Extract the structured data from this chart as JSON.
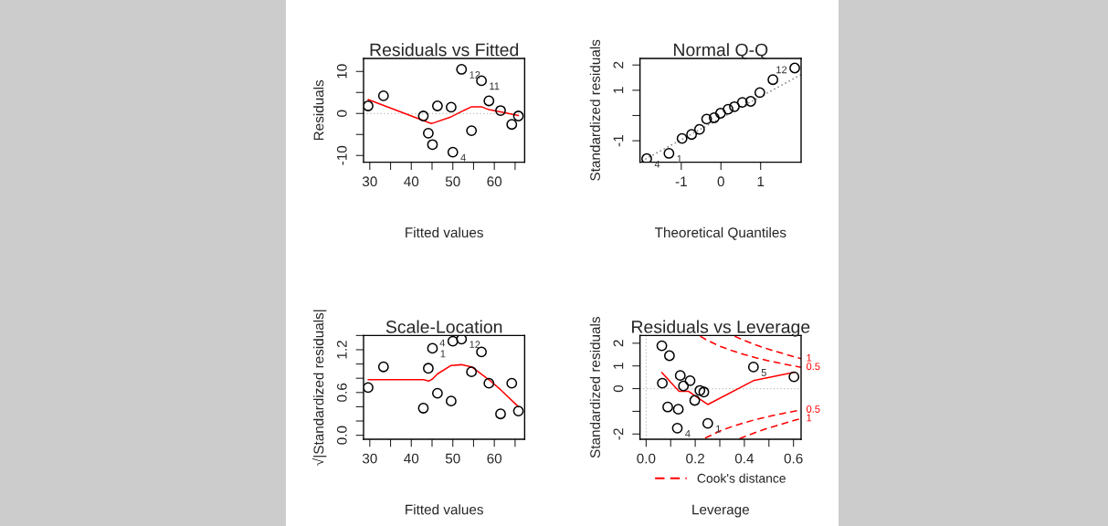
{
  "chart_data": [
    {
      "type": "scatter",
      "title": "Residuals vs Fitted",
      "xlabel": "Fitted values",
      "ylabel": "Residuals",
      "series": [
        {
          "type": "scatter",
          "color": "#000000",
          "marker": "circle",
          "x": [
            29.6,
            33.3,
            42.9,
            44.1,
            45.1,
            46.3,
            49.6,
            50.0,
            52.1,
            54.5,
            56.9,
            58.7,
            61.5,
            64.2,
            65.8
          ],
          "values": [
            1.8,
            4.2,
            -0.6,
            -4.7,
            -7.4,
            1.8,
            1.5,
            -9.2,
            10.5,
            -4.1,
            7.8,
            3.0,
            0.7,
            -2.6,
            -0.6
          ]
        },
        {
          "type": "line",
          "color": "#ff0000",
          "line_style": "solid",
          "x": [
            29.6,
            44.8,
            45.5,
            49.6,
            52.0,
            54.5,
            56.9,
            58.7,
            61.5,
            65.8
          ],
          "values": [
            3.3,
            -2.4,
            -2.2,
            -0.8,
            0.4,
            1.6,
            1.6,
            0.9,
            0.4,
            -0.5
          ]
        }
      ],
      "ref_lines": [
        {
          "axis": "y",
          "value": 0,
          "color": "#bebebe",
          "line_style": "dotted"
        }
      ],
      "annotations": [
        {
          "text": "4",
          "x": 50.0,
          "y": -9.2
        },
        {
          "text": "12",
          "x": 52.1,
          "y": 10.5
        },
        {
          "text": "11",
          "x": 56.9,
          "y": 7.8
        }
      ],
      "xlim": [
        28.5,
        67.3
      ],
      "xticks": [
        30,
        {
          "value": 35,
          "label": null
        },
        40,
        {
          "value": 45,
          "label": null
        },
        50,
        {
          "value": 55,
          "label": null
        },
        60,
        {
          "value": 65,
          "label": null
        }
      ],
      "ylim": [
        -11.6,
        13.1
      ],
      "yticks": [
        -10,
        {
          "value": -5,
          "label": null
        },
        0,
        {
          "value": 5,
          "label": null
        },
        10
      ],
      "grid": false,
      "legend": false
    },
    {
      "type": "scatter",
      "title": "Normal Q-Q",
      "xlabel": "Theoretical Quantiles",
      "ylabel": "Standardized residuals",
      "series": [
        {
          "type": "scatter",
          "color": "#000000",
          "marker": "circle",
          "x": [
            -1.87,
            -1.31,
            -0.98,
            -0.74,
            -0.54,
            -0.36,
            -0.17,
            -0.01,
            0.18,
            0.34,
            0.54,
            0.75,
            0.98,
            1.31,
            1.86
          ],
          "values": [
            -1.71,
            -1.5,
            -0.91,
            -0.75,
            -0.55,
            -0.14,
            -0.09,
            0.09,
            0.25,
            0.35,
            0.52,
            0.56,
            0.91,
            1.42,
            1.88
          ]
        },
        {
          "type": "line",
          "color": "#808080",
          "line_style": "dotted",
          "x": [
            -2.0,
            2.02
          ],
          "values": [
            -1.81,
            1.62
          ]
        }
      ],
      "annotations": [
        {
          "text": "4",
          "x": -1.87,
          "y": -1.71
        },
        {
          "text": "1",
          "x": -1.31,
          "y": -1.5
        },
        {
          "text": "12",
          "x": 1.86,
          "y": 1.88
        }
      ],
      "xlim": [
        -2.04,
        2.02
      ],
      "xticks": [
        -1,
        0,
        1
      ],
      "ylim": [
        -1.85,
        2.26
      ],
      "yticks": [
        -1,
        {
          "value": 0,
          "label": null
        },
        1,
        2
      ],
      "grid": false,
      "legend": false
    },
    {
      "type": "scatter",
      "title": "Scale-Location",
      "xlabel": "Fitted values",
      "ylabel": "√|Standardized residuals|",
      "series": [
        {
          "type": "scatter",
          "color": "#000000",
          "marker": "circle",
          "x": [
            29.6,
            33.3,
            42.9,
            44.1,
            45.1,
            46.3,
            49.6,
            50.0,
            52.1,
            54.5,
            56.9,
            58.7,
            61.5,
            64.2,
            65.8
          ],
          "values": [
            0.67,
            0.96,
            0.38,
            0.94,
            1.22,
            0.59,
            0.48,
            1.32,
            1.35,
            0.89,
            1.17,
            0.73,
            0.3,
            0.73,
            0.34
          ]
        },
        {
          "type": "line",
          "color": "#ff0000",
          "line_style": "solid",
          "x": [
            29.6,
            42.9,
            44.2,
            45.1,
            46.3,
            49.6,
            52.1,
            54.5,
            58.7,
            61.5,
            65.8
          ],
          "values": [
            0.78,
            0.78,
            0.76,
            0.79,
            0.86,
            0.98,
            0.99,
            0.96,
            0.78,
            0.64,
            0.4
          ]
        }
      ],
      "annotations": [
        {
          "text": "1",
          "x": 45.1,
          "y": 1.22
        },
        {
          "text": "4",
          "x": 50.0,
          "y": 1.32
        },
        {
          "text": "12",
          "x": 52.1,
          "y": 1.35
        }
      ],
      "xlim": [
        28.5,
        67.3
      ],
      "xticks": [
        30,
        {
          "value": 35,
          "label": null
        },
        40,
        {
          "value": 45,
          "label": null
        },
        50,
        {
          "value": 55,
          "label": null
        },
        60,
        {
          "value": 65,
          "label": null
        }
      ],
      "ylim": [
        -0.056,
        1.4
      ],
      "yticks": [
        {
          "value": 0,
          "label": "0.0"
        },
        {
          "value": 0.2,
          "label": null
        },
        {
          "value": 0.4,
          "label": null
        },
        0.6,
        {
          "value": 0.8,
          "label": null
        },
        {
          "value": 1.0,
          "label": null
        },
        1.2,
        {
          "value": 1.4,
          "label": null
        }
      ],
      "grid": false,
      "legend": false
    },
    {
      "type": "scatter",
      "title": "Residuals vs Leverage",
      "xlabel": "Leverage",
      "ylabel": "Standardized residuals",
      "series": [
        {
          "type": "scatter",
          "color": "#000000",
          "marker": "circle",
          "x": [
            0.064,
            0.095,
            0.066,
            0.139,
            0.152,
            0.179,
            0.219,
            0.235,
            0.198,
            0.088,
            0.131,
            0.127,
            0.251,
            0.437,
            0.602
          ],
          "values": [
            1.89,
            1.45,
            0.24,
            0.58,
            0.12,
            0.35,
            -0.08,
            -0.15,
            -0.52,
            -0.81,
            -0.91,
            -1.74,
            -1.53,
            0.95,
            0.52
          ]
        },
        {
          "type": "line",
          "color": "#ff0000",
          "line_style": "solid",
          "x": [
            0.064,
            0.134,
            0.173,
            0.251,
            0.437,
            0.602
          ],
          "values": [
            0.71,
            -0.12,
            -0.12,
            -0.7,
            0.35,
            0.72
          ]
        },
        {
          "type": "line",
          "name": "Cook's distance",
          "color": "#ff0000",
          "line_style": "dashed",
          "x": [
            0.22,
            0.25,
            0.3,
            0.35,
            0.4,
            0.45,
            0.5,
            0.55,
            0.6,
            0.631
          ],
          "values": [
            2.31,
            2.12,
            1.87,
            1.67,
            1.5,
            1.35,
            1.22,
            1.11,
            1.0,
            0.94
          ]
        },
        {
          "type": "line",
          "color": "#ff0000",
          "line_style": "dashed",
          "x": [
            0.36,
            0.4,
            0.45,
            0.5,
            0.55,
            0.6,
            0.631
          ],
          "values": [
            2.31,
            2.12,
            1.91,
            1.73,
            1.57,
            1.41,
            1.32
          ]
        },
        {
          "type": "line",
          "color": "#ff0000",
          "line_style": "dashed",
          "x": [
            0.24,
            0.3,
            0.35,
            0.4,
            0.45,
            0.5,
            0.55,
            0.6,
            0.631
          ],
          "values": [
            -2.18,
            -1.87,
            -1.67,
            -1.5,
            -1.35,
            -1.22,
            -1.11,
            -1.0,
            -0.94
          ]
        },
        {
          "type": "line",
          "color": "#ff0000",
          "line_style": "dashed",
          "x": [
            0.38,
            0.4,
            0.45,
            0.5,
            0.55,
            0.6,
            0.631
          ],
          "values": [
            -2.21,
            -2.12,
            -1.91,
            -1.73,
            -1.57,
            -1.41,
            -1.32
          ]
        }
      ],
      "ref_lines": [
        {
          "axis": "y",
          "value": 0,
          "color": "#bebebe",
          "line_style": "dotted"
        },
        {
          "axis": "x",
          "value": 0,
          "color": "#bebebe",
          "line_style": "dotted"
        }
      ],
      "annotations": [
        {
          "text": "4",
          "x": 0.127,
          "y": -1.74
        },
        {
          "text": "1",
          "x": 0.251,
          "y": -1.53
        },
        {
          "text": "5",
          "x": 0.437,
          "y": 0.95
        },
        {
          "text": "1",
          "x": 0.631,
          "y": 1.32
        },
        {
          "text": "0.5",
          "x": 0.631,
          "y": 0.94
        },
        {
          "text": "0.5",
          "x": 0.631,
          "y": -0.94
        },
        {
          "text": "1",
          "x": 0.631,
          "y": -1.32
        }
      ],
      "xlim": [
        -0.025,
        0.631
      ],
      "xticks": [
        {
          "value": 0,
          "label": "0.0"
        },
        {
          "value": 0.1,
          "label": null
        },
        0.2,
        {
          "value": 0.3,
          "label": null
        },
        0.4,
        {
          "value": 0.5,
          "label": null
        },
        0.6
      ],
      "ylim": [
        -2.23,
        2.34
      ],
      "yticks": [
        -2,
        {
          "value": -1,
          "label": null
        },
        0,
        1,
        2
      ],
      "grid": false,
      "legend": "bottom"
    }
  ]
}
